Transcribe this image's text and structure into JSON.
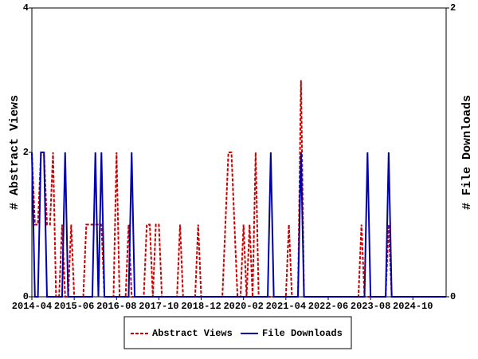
{
  "chart_data": {
    "type": "line",
    "categories": [
      "2014-04",
      null,
      null,
      null,
      null,
      null,
      null,
      null,
      null,
      null,
      null,
      null,
      null,
      null,
      "2015-06",
      null,
      null,
      null,
      null,
      null,
      null,
      null,
      null,
      null,
      null,
      null,
      null,
      null,
      "2016-08",
      null,
      null,
      null,
      null,
      null,
      null,
      null,
      null,
      null,
      null,
      null,
      null,
      null,
      "2017-10",
      null,
      null,
      null,
      null,
      null,
      null,
      null,
      null,
      null,
      null,
      null,
      null,
      null,
      "2018-12",
      null,
      null,
      null,
      null,
      null,
      null,
      null,
      null,
      null,
      null,
      null,
      null,
      null,
      "2020-02",
      null,
      null,
      null,
      null,
      null,
      null,
      null,
      null,
      null,
      null,
      null,
      null,
      null,
      "2021-04",
      null,
      null,
      null,
      null,
      null,
      null,
      null,
      null,
      null,
      null,
      null,
      null,
      null,
      "2022-06",
      null,
      null,
      null,
      null,
      null,
      null,
      null,
      null,
      null,
      null,
      null,
      null,
      null,
      "2023-08",
      null,
      null,
      null,
      null,
      null,
      null,
      null,
      null,
      null,
      null,
      null,
      null,
      null,
      "2024-10",
      null,
      null,
      null,
      null,
      null,
      null,
      null,
      null,
      null,
      null,
      null
    ],
    "ylabel": "# Abstract Views",
    "y2label": "# File Downloads",
    "ylim": [
      0,
      4
    ],
    "yticks": [
      0,
      2,
      4
    ],
    "y2lim": [
      0,
      2
    ],
    "y2ticks": [
      0,
      2
    ],
    "series": [
      {
        "name": "Abstract Views",
        "color": "#cc0000",
        "dashed": true,
        "values": [
          2,
          1,
          1,
          2,
          2,
          1,
          1,
          2,
          0,
          0,
          1,
          0,
          0,
          1,
          0,
          0,
          0,
          0,
          1,
          1,
          1,
          1,
          1,
          1,
          0,
          0,
          0,
          0,
          2,
          0,
          0,
          0,
          1,
          0,
          0,
          0,
          0,
          0,
          1,
          1,
          0,
          1,
          1,
          0,
          0,
          0,
          0,
          0,
          0,
          1,
          0,
          0,
          0,
          0,
          0,
          1,
          0,
          0,
          0,
          0,
          0,
          0,
          0,
          0,
          1,
          2,
          2,
          1,
          0,
          0,
          1,
          0,
          1,
          0,
          2,
          0,
          0,
          0,
          0,
          0,
          0,
          0,
          0,
          0,
          0,
          1,
          0,
          0,
          0,
          3,
          0,
          0,
          0,
          0,
          0,
          0,
          0,
          0,
          0,
          0,
          0,
          0,
          0,
          0,
          0,
          0,
          0,
          0,
          0,
          1,
          0,
          0,
          0,
          0,
          0,
          0,
          0,
          0,
          1,
          0,
          0,
          0,
          0,
          0,
          0,
          0,
          0,
          0,
          0,
          0,
          0,
          0,
          0,
          0,
          0,
          0,
          0,
          0
        ]
      },
      {
        "name": "File Downloads",
        "color": "#0000aa",
        "axis": "y2",
        "values": [
          1,
          0,
          0,
          1,
          1,
          0,
          0,
          0,
          0,
          0,
          0,
          1,
          0,
          0,
          0,
          0,
          0,
          0,
          0,
          0,
          0,
          1,
          0,
          1,
          0,
          0,
          0,
          0,
          0,
          0,
          0,
          0,
          0,
          1,
          0,
          0,
          0,
          0,
          0,
          0,
          0,
          0,
          0,
          0,
          0,
          0,
          0,
          0,
          0,
          0,
          0,
          0,
          0,
          0,
          0,
          0,
          0,
          0,
          0,
          0,
          0,
          0,
          0,
          0,
          0,
          0,
          0,
          0,
          0,
          0,
          0,
          0,
          0,
          0,
          0,
          0,
          0,
          0,
          0,
          1,
          0,
          0,
          0,
          0,
          0,
          0,
          0,
          0,
          0,
          1,
          0,
          0,
          0,
          0,
          0,
          0,
          0,
          0,
          0,
          0,
          0,
          0,
          0,
          0,
          0,
          0,
          0,
          0,
          0,
          0,
          0,
          1,
          0,
          0,
          0,
          0,
          0,
          0,
          1,
          0,
          0,
          0,
          0,
          0,
          0,
          0,
          0,
          0,
          0,
          0,
          0,
          0,
          0,
          0,
          0,
          0,
          0,
          0
        ]
      }
    ]
  }
}
